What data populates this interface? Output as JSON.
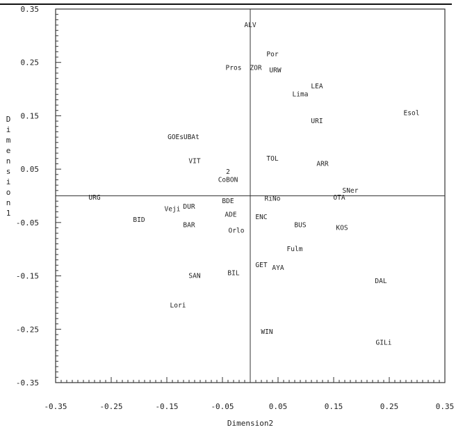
{
  "chart_data": {
    "type": "scatter",
    "title": "",
    "xlabel": "Dimension2",
    "ylabel": "Dimension1",
    "xlim": [
      -0.35,
      0.35
    ],
    "ylim": [
      -0.35,
      0.35
    ],
    "xticks": [
      -0.35,
      -0.25,
      -0.15,
      -0.05,
      0.05,
      0.15,
      0.25,
      0.35
    ],
    "yticks": [
      0.35,
      0.25,
      0.15,
      0.05,
      -0.05,
      -0.15,
      -0.25,
      -0.35
    ],
    "xtick_labels": [
      "-0.35",
      "-0.25",
      "-0.15",
      "-0.05",
      "0.05",
      "0.15",
      "0.25",
      "0.35"
    ],
    "ytick_labels": [
      "0.35",
      "0.25",
      "0.15",
      "0.05",
      "-0.05",
      "-0.15",
      "-0.25",
      "-0.35"
    ],
    "reference_lines": {
      "x": 0,
      "y": 0
    },
    "grid": false,
    "points": [
      {
        "label": "ALV",
        "x": 0.0,
        "y": 0.32
      },
      {
        "label": "Por",
        "x": 0.04,
        "y": 0.265
      },
      {
        "label": "Pros",
        "x": -0.03,
        "y": 0.24
      },
      {
        "label": "ZOR",
        "x": 0.01,
        "y": 0.24
      },
      {
        "label": "URW",
        "x": 0.045,
        "y": 0.235
      },
      {
        "label": "LEA",
        "x": 0.12,
        "y": 0.205
      },
      {
        "label": "Lima",
        "x": 0.09,
        "y": 0.19
      },
      {
        "label": "Esol",
        "x": 0.29,
        "y": 0.155
      },
      {
        "label": "URI",
        "x": 0.12,
        "y": 0.14
      },
      {
        "label": "GOEsUBAt",
        "x": -0.12,
        "y": 0.11
      },
      {
        "label": "VIT",
        "x": -0.1,
        "y": 0.065
      },
      {
        "label": "TOL",
        "x": 0.04,
        "y": 0.07
      },
      {
        "label": "ARR",
        "x": 0.13,
        "y": 0.06
      },
      {
        "label": "2",
        "x": -0.04,
        "y": 0.045
      },
      {
        "label": "CoBON",
        "x": -0.04,
        "y": 0.03
      },
      {
        "label": "SNer",
        "x": 0.18,
        "y": 0.01
      },
      {
        "label": "URG",
        "x": -0.28,
        "y": -0.003
      },
      {
        "label": "OTA",
        "x": 0.16,
        "y": -0.003
      },
      {
        "label": "BDE",
        "x": -0.04,
        "y": -0.01
      },
      {
        "label": "RiNo",
        "x": 0.04,
        "y": -0.005
      },
      {
        "label": "Veji",
        "x": -0.14,
        "y": -0.025
      },
      {
        "label": "DUR",
        "x": -0.11,
        "y": -0.02
      },
      {
        "label": "ADE",
        "x": -0.035,
        "y": -0.035
      },
      {
        "label": "ENC",
        "x": 0.02,
        "y": -0.04
      },
      {
        "label": "BID",
        "x": -0.2,
        "y": -0.045
      },
      {
        "label": "BAR",
        "x": -0.11,
        "y": -0.055
      },
      {
        "label": "BUS",
        "x": 0.09,
        "y": -0.055
      },
      {
        "label": "KOS",
        "x": 0.165,
        "y": -0.06
      },
      {
        "label": "Orlo",
        "x": -0.025,
        "y": -0.065
      },
      {
        "label": "Fulm",
        "x": 0.08,
        "y": -0.1
      },
      {
        "label": "GET",
        "x": 0.02,
        "y": -0.13
      },
      {
        "label": "AYA",
        "x": 0.05,
        "y": -0.135
      },
      {
        "label": "BIL",
        "x": -0.03,
        "y": -0.145
      },
      {
        "label": "SAN",
        "x": -0.1,
        "y": -0.15
      },
      {
        "label": "DAL",
        "x": 0.235,
        "y": -0.16
      },
      {
        "label": "Lori",
        "x": -0.13,
        "y": -0.205
      },
      {
        "label": "WIN",
        "x": 0.03,
        "y": -0.255
      },
      {
        "label": "GILi",
        "x": 0.24,
        "y": -0.275
      }
    ]
  }
}
